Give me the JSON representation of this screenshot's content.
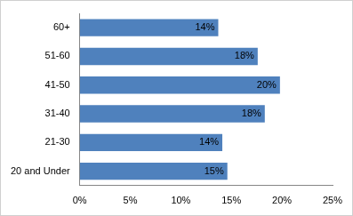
{
  "chart_data": {
    "type": "bar",
    "orientation": "horizontal",
    "categories": [
      "60+",
      "51-60",
      "41-50",
      "31-40",
      "21-30",
      "20 and Under"
    ],
    "values": [
      13.7,
      17.6,
      19.8,
      18.3,
      14.1,
      14.6
    ],
    "value_labels": [
      "14%",
      "18%",
      "20%",
      "18%",
      "14%",
      "15%"
    ],
    "data_labels": true,
    "color": "#4f81bd",
    "xlim": [
      0,
      25
    ],
    "xticks": [
      {
        "value": 0,
        "label": "0%"
      },
      {
        "value": 5,
        "label": "5%"
      },
      {
        "value": 10,
        "label": "10%"
      },
      {
        "value": 15,
        "label": "15%"
      },
      {
        "value": 20,
        "label": "20%"
      },
      {
        "value": 25,
        "label": "25%"
      }
    ],
    "grid": false
  }
}
